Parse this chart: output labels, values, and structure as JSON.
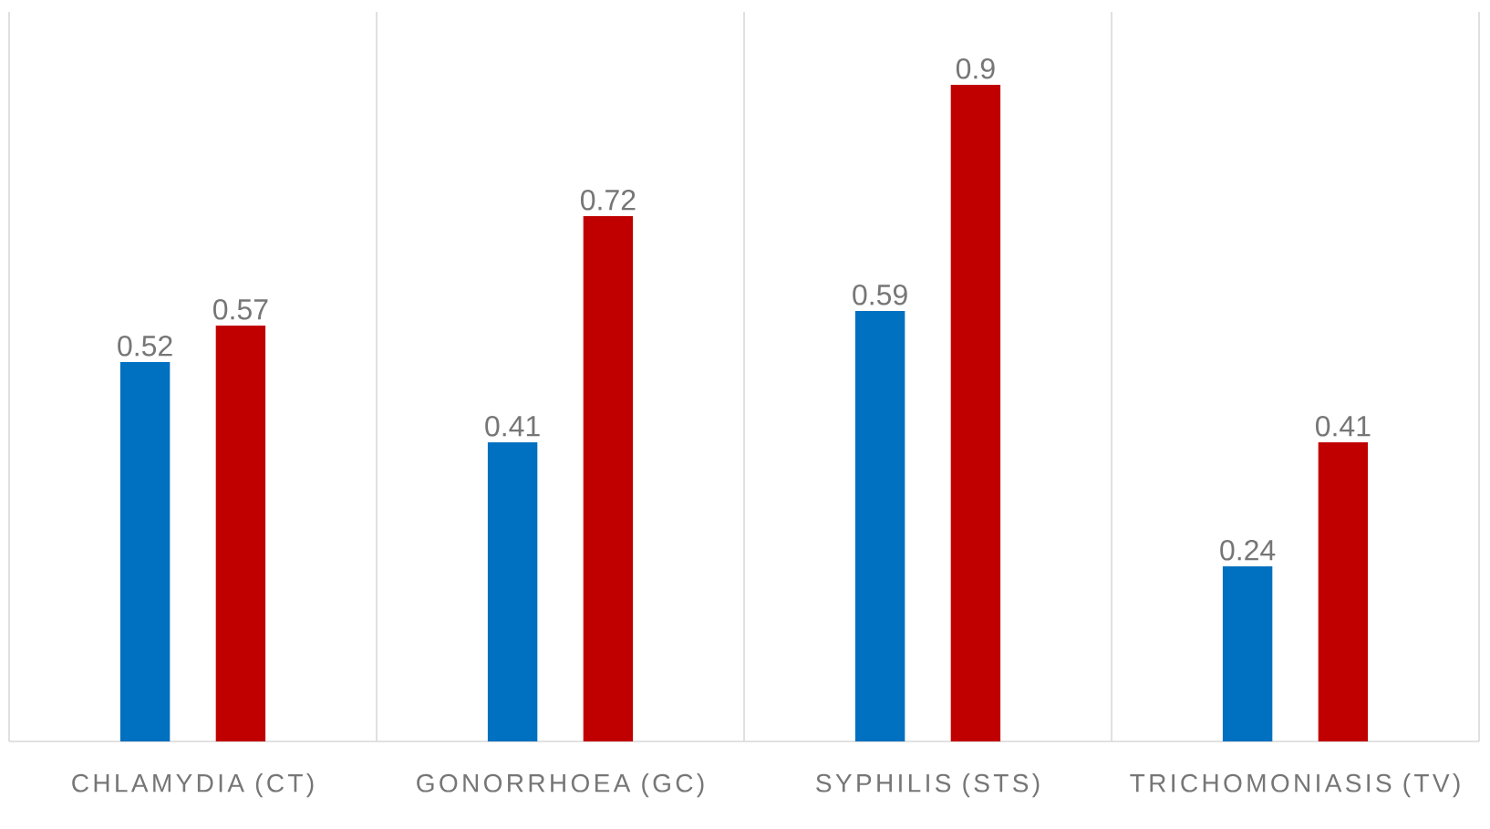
{
  "chart_data": {
    "type": "bar",
    "categories": [
      "CHLAMYDIA (CT)",
      "GONORRHOEA (GC)",
      "SYPHILIS (STS)",
      "TRICHOMONIASIS (TV)"
    ],
    "series": [
      {
        "color": "#0070c0",
        "values": [
          0.52,
          0.41,
          0.59,
          0.24
        ]
      },
      {
        "color": "#c00000",
        "values": [
          0.57,
          0.72,
          0.9,
          0.41
        ]
      }
    ],
    "ylim": [
      0,
      1
    ],
    "grid": "x",
    "data_labels": true
  }
}
